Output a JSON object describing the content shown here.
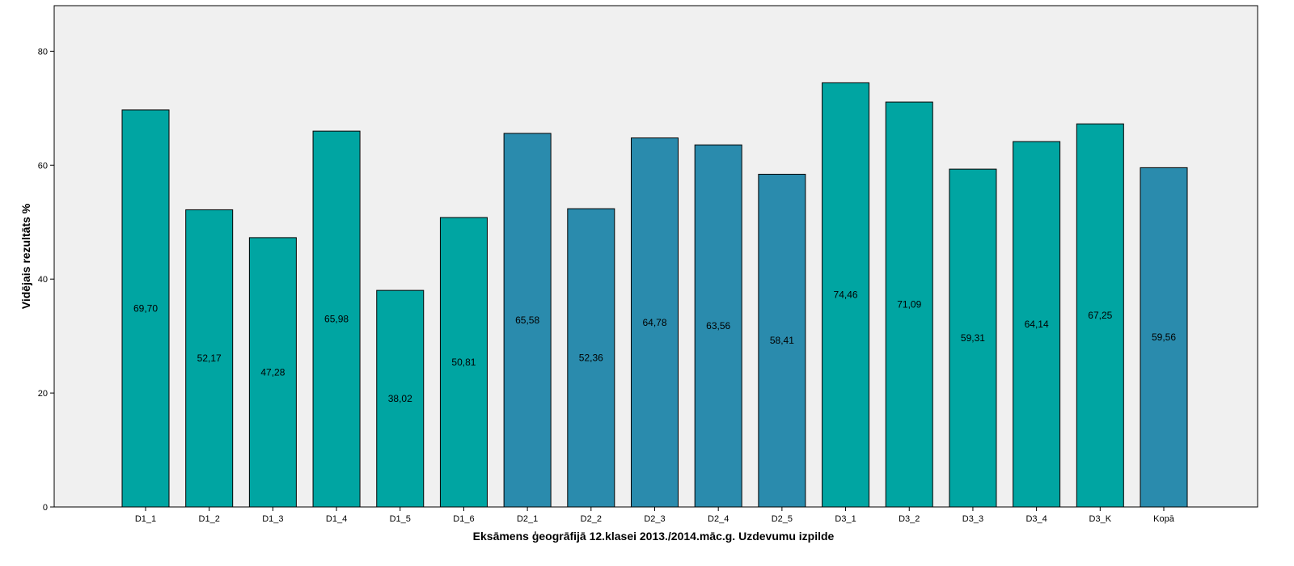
{
  "chart_data": {
    "type": "bar",
    "title": "",
    "xlabel": "Eksāmens ģeogrāfijā 12.klasei 2013./2014.māc.g. Uzdevumu izpilde",
    "ylabel": "Vidējais rezultāts %",
    "ylim": [
      0,
      88
    ],
    "yticks": [
      0,
      20,
      40,
      60,
      80
    ],
    "grid": false,
    "legend": "none",
    "plot_background": "#f0f0f0",
    "colors": {
      "teal": "#00a5a2",
      "blue": "#2a8bad",
      "edge": "#000000"
    },
    "categories": [
      "D1_1",
      "D1_2",
      "D1_3",
      "D1_4",
      "D1_5",
      "D1_6",
      "D2_1",
      "D2_2",
      "D2_3",
      "D2_4",
      "D2_5",
      "D3_1",
      "D3_2",
      "D3_3",
      "D3_4",
      "D3_K",
      "Kopā"
    ],
    "values": [
      69.7,
      52.17,
      47.28,
      65.98,
      38.02,
      50.81,
      65.58,
      52.36,
      64.78,
      63.56,
      58.41,
      74.46,
      71.09,
      59.31,
      64.14,
      67.25,
      59.56
    ],
    "value_labels": [
      "69,70",
      "52,17",
      "47,28",
      "65,98",
      "38,02",
      "50,81",
      "65,58",
      "52,36",
      "64,78",
      "63,56",
      "58,41",
      "74,46",
      "71,09",
      "59,31",
      "64,14",
      "67,25",
      "59,56"
    ],
    "bar_colors": [
      "teal",
      "teal",
      "teal",
      "teal",
      "teal",
      "teal",
      "blue",
      "blue",
      "blue",
      "blue",
      "blue",
      "teal",
      "teal",
      "teal",
      "teal",
      "teal",
      "blue"
    ]
  }
}
